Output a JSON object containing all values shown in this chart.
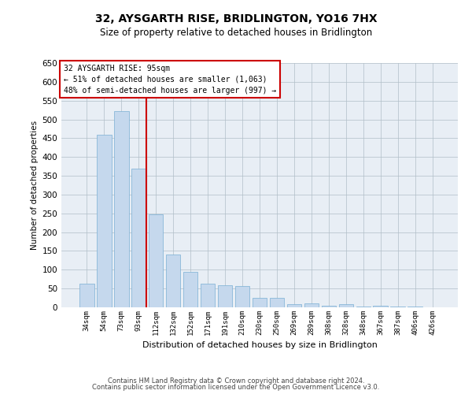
{
  "title": "32, AYSGARTH RISE, BRIDLINGTON, YO16 7HX",
  "subtitle": "Size of property relative to detached houses in Bridlington",
  "xlabel": "Distribution of detached houses by size in Bridlington",
  "ylabel": "Number of detached properties",
  "categories": [
    "34sqm",
    "54sqm",
    "73sqm",
    "93sqm",
    "112sqm",
    "132sqm",
    "152sqm",
    "171sqm",
    "191sqm",
    "210sqm",
    "230sqm",
    "250sqm",
    "269sqm",
    "289sqm",
    "308sqm",
    "328sqm",
    "348sqm",
    "367sqm",
    "387sqm",
    "406sqm",
    "426sqm"
  ],
  "values": [
    62,
    460,
    522,
    370,
    248,
    140,
    95,
    62,
    58,
    57,
    26,
    25,
    8,
    10,
    5,
    8,
    3,
    5,
    2,
    2,
    1
  ],
  "bar_color": "#c5d8ed",
  "bar_edge_color": "#7aafd4",
  "red_line_index": 3,
  "annotation_title": "32 AYSGARTH RISE: 95sqm",
  "annotation_line1": "← 51% of detached houses are smaller (1,063)",
  "annotation_line2": "48% of semi-detached houses are larger (997) →",
  "annotation_box_color": "#ffffff",
  "annotation_box_edge": "#cc0000",
  "red_line_color": "#cc0000",
  "ylim": [
    0,
    650
  ],
  "yticks": [
    0,
    50,
    100,
    150,
    200,
    250,
    300,
    350,
    400,
    450,
    500,
    550,
    600,
    650
  ],
  "background_color": "#e8eef5",
  "footer_line1": "Contains HM Land Registry data © Crown copyright and database right 2024.",
  "footer_line2": "Contains public sector information licensed under the Open Government Licence v3.0."
}
